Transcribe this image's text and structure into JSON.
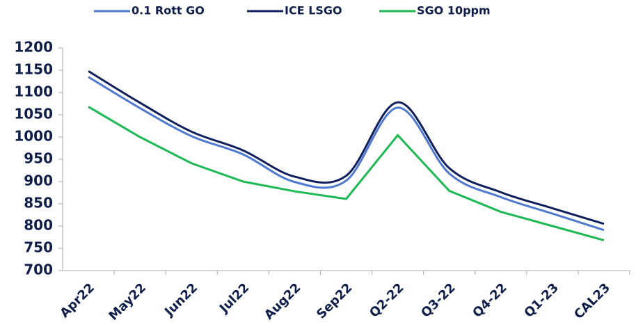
{
  "chart_data": {
    "type": "line",
    "categories": [
      "Apr22",
      "May22",
      "Jun22",
      "Jul22",
      "Aug22",
      "Sep22",
      "Q2-22",
      "Q3-22",
      "Q4-22",
      "Q1-23",
      "CAL23"
    ],
    "series": [
      {
        "name": "0.1 Rott GO",
        "color": "#4f78cf",
        "smooth": true,
        "values": [
          1135,
          1065,
          1002,
          961,
          899,
          902,
          1066,
          918,
          865,
          828,
          791
        ]
      },
      {
        "name": "ICE LSGO",
        "color": "#0f1f5c",
        "smooth": true,
        "values": [
          1148,
          1077,
          1012,
          970,
          911,
          913,
          1078,
          930,
          876,
          840,
          805
        ]
      },
      {
        "name": "SGO 10ppm",
        "color": "#1db954",
        "smooth": false,
        "values": [
          1068,
          1000,
          941,
          900,
          878,
          861,
          1004,
          879,
          832,
          800,
          768
        ]
      }
    ],
    "ylim": [
      700,
      1200
    ],
    "yticks": [
      700,
      750,
      800,
      850,
      900,
      950,
      1000,
      1050,
      1100,
      1150,
      1200
    ],
    "grid": false,
    "legend": "top"
  }
}
